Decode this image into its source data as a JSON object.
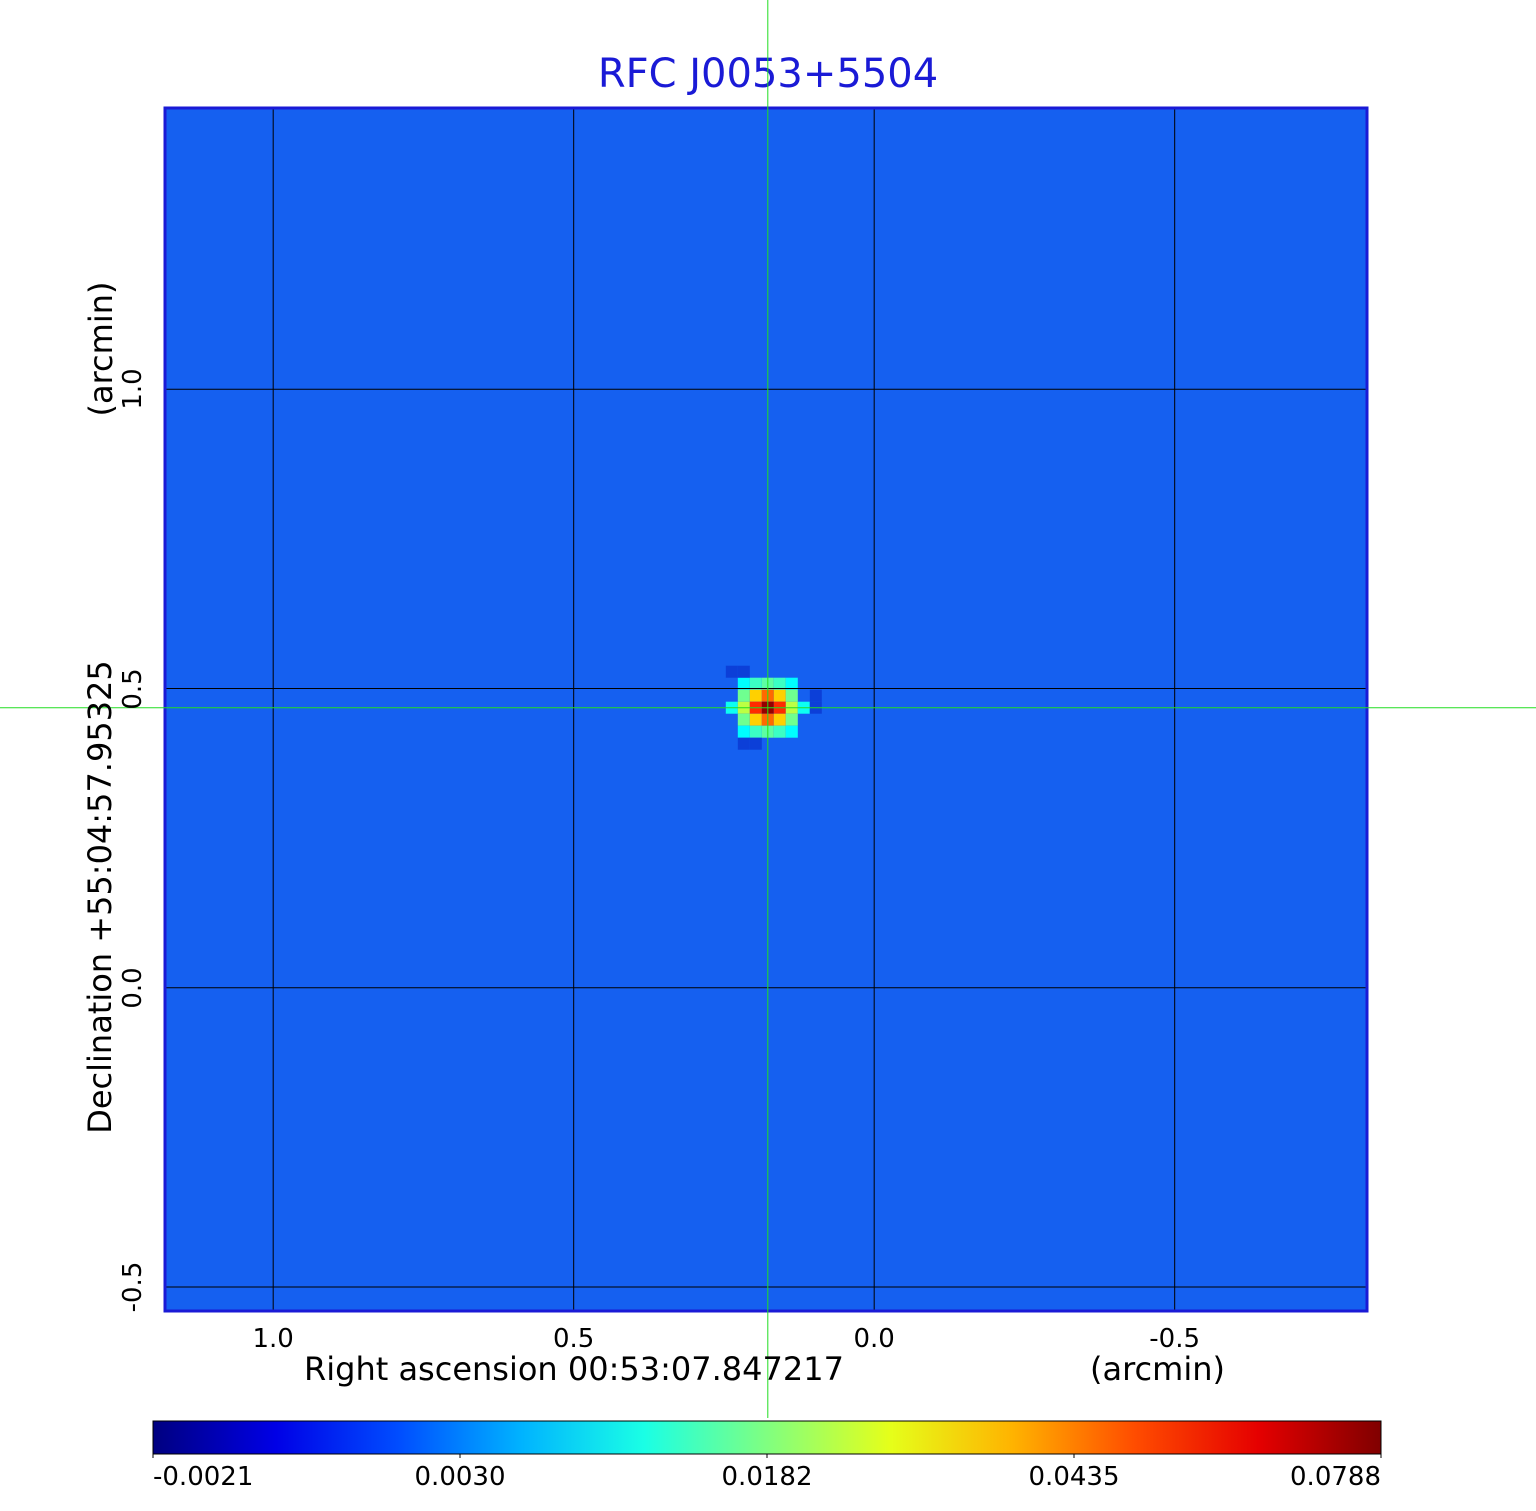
{
  "chart_data": {
    "type": "heatmap",
    "title": "RFC J0053+5504",
    "xlabel": "Right ascension  00:53:07.847217",
    "xunit": "(arcmin)",
    "ylabel": "Declination  +55:04:57.95325",
    "yunit": "(arcmin)",
    "x_ticks": [
      "1.0",
      "0.5",
      "0.0",
      "-0.5"
    ],
    "y_ticks": [
      "1.0",
      "0.5",
      "0.0",
      "-0.5"
    ],
    "xlim": [
      1.18,
      -0.82
    ],
    "ylim": [
      -0.54,
      1.47
    ],
    "grid": true,
    "crosshair": {
      "x": 0.177,
      "y": 0.468,
      "color": "#22dd22"
    },
    "source": {
      "x": 0.177,
      "y": 0.468,
      "peak": 0.0788
    },
    "colorbar": {
      "ticks": [
        "-0.0021",
        "0.0030",
        "0.0182",
        "0.0435",
        "0.0788"
      ],
      "colormap": "jet"
    },
    "background_color": "#1560f0",
    "grid_color": "#000000",
    "title_color": "#1a1ad6"
  }
}
